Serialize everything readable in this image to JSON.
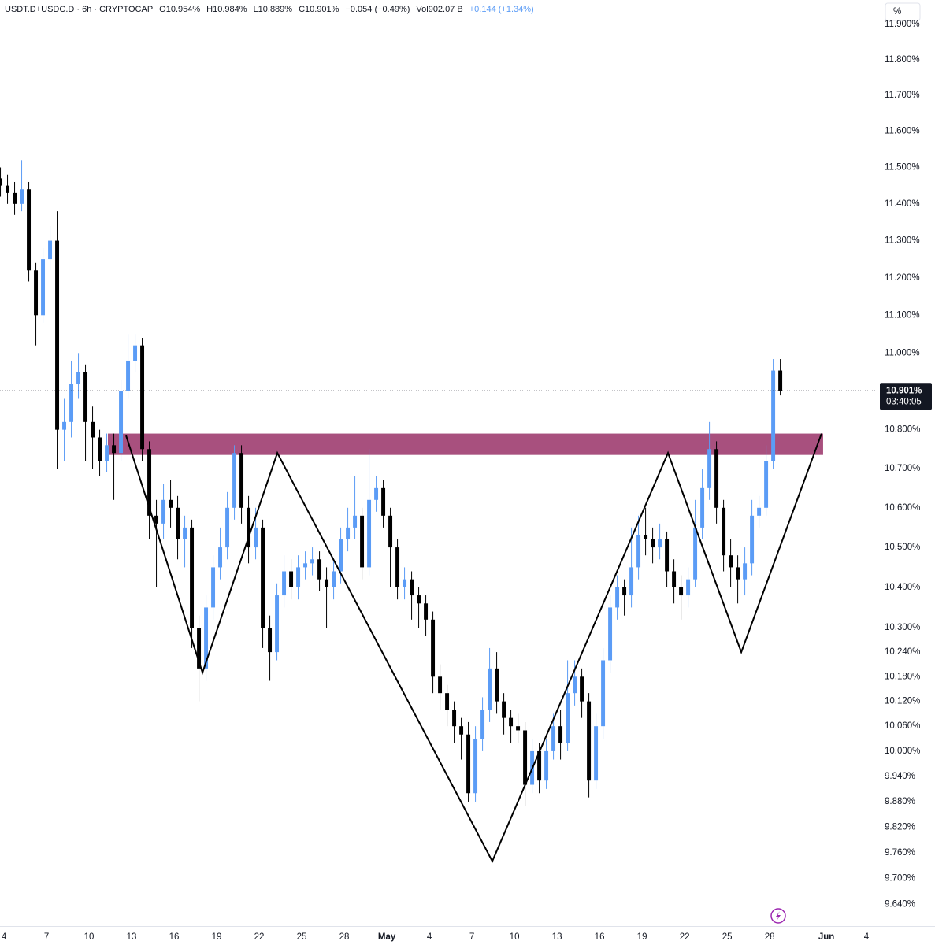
{
  "chart_data": {
    "type": "candlestick",
    "header": {
      "symbol": "USDT.D+USDC.D · 6h · CRYPTOCAP",
      "open": "O10.954%",
      "high": "H10.984%",
      "low": "L10.889%",
      "close": "C10.901%",
      "change": "−0.054 (−0.49%)",
      "volume": "Vol902.07 B",
      "volume_change": "+0.144 (+1.34%)"
    },
    "axis_unit": "%",
    "price_label": "10.901%",
    "countdown": "03:40:05",
    "up_color": "#5b9cf6",
    "down_color": "#000000",
    "log_scale": true,
    "grid": false,
    "xlim": [
      3.72,
      65.55
    ],
    "ylim": [
      9.59,
      11.97
    ],
    "xticks": [
      4,
      7,
      10,
      13,
      16,
      19,
      22,
      25,
      28,
      {
        "value": 31,
        "label": "May"
      },
      {
        "value": 34,
        "label": "4"
      },
      {
        "value": 37,
        "label": "7"
      },
      {
        "value": 40,
        "label": "10"
      },
      {
        "value": 43,
        "label": "13"
      },
      {
        "value": 46,
        "label": "16"
      },
      {
        "value": 49,
        "label": "19"
      },
      {
        "value": 52,
        "label": "22"
      },
      {
        "value": 55,
        "label": "25"
      },
      {
        "value": 58,
        "label": "28"
      },
      {
        "value": 62,
        "label": "Jun"
      },
      {
        "value": 65,
        "label": "4"
      }
    ],
    "yticks": [
      {
        "value": 11.9,
        "label": "11.900%"
      },
      {
        "value": 11.8,
        "label": "11.800%"
      },
      {
        "value": 11.7,
        "label": "11.700%"
      },
      {
        "value": 11.6,
        "label": "11.600%"
      },
      {
        "value": 11.5,
        "label": "11.500%"
      },
      {
        "value": 11.4,
        "label": "11.400%"
      },
      {
        "value": 11.3,
        "label": "11.300%"
      },
      {
        "value": 11.2,
        "label": "11.200%"
      },
      {
        "value": 11.1,
        "label": "11.100%"
      },
      {
        "value": 11.0,
        "label": "11.000%"
      },
      {
        "value": 10.8,
        "label": "10.800%"
      },
      {
        "value": 10.7,
        "label": "10.700%"
      },
      {
        "value": 10.6,
        "label": "10.600%"
      },
      {
        "value": 10.5,
        "label": "10.500%"
      },
      {
        "value": 10.4,
        "label": "10.400%"
      },
      {
        "value": 10.3,
        "label": "10.300%"
      },
      {
        "value": 10.24,
        "label": "10.240%"
      },
      {
        "value": 10.18,
        "label": "10.180%"
      },
      {
        "value": 10.12,
        "label": "10.120%"
      },
      {
        "value": 10.06,
        "label": "10.060%"
      },
      {
        "value": 10.0,
        "label": "10.000%"
      },
      {
        "value": 9.94,
        "label": "9.940%"
      },
      {
        "value": 9.88,
        "label": "9.880%"
      },
      {
        "value": 9.82,
        "label": "9.820%"
      },
      {
        "value": 9.76,
        "label": "9.760%"
      },
      {
        "value": 9.7,
        "label": "9.700%"
      },
      {
        "value": 9.64,
        "label": "9.640%"
      }
    ],
    "x": [
      3.75,
      4.25,
      4.75,
      5.25,
      5.75,
      6.25,
      6.75,
      7.25,
      7.75,
      8.25,
      8.75,
      9.25,
      9.75,
      10.25,
      10.75,
      11.25,
      11.75,
      12.25,
      12.75,
      13.25,
      13.75,
      14.25,
      14.75,
      15.25,
      15.75,
      16.25,
      16.75,
      17.25,
      17.75,
      18.25,
      18.75,
      19.25,
      19.75,
      20.25,
      20.75,
      21.25,
      21.75,
      22.25,
      22.75,
      23.25,
      23.75,
      24.25,
      24.75,
      25.25,
      25.75,
      26.25,
      26.75,
      27.25,
      27.75,
      28.25,
      28.75,
      29.25,
      29.75,
      30.25,
      30.75,
      31.25,
      31.75,
      32.25,
      32.75,
      33.25,
      33.75,
      34.25,
      34.75,
      35.25,
      35.75,
      36.25,
      36.75,
      37.25,
      37.75,
      38.25,
      38.75,
      39.25,
      39.75,
      40.25,
      40.75,
      41.25,
      41.75,
      42.25,
      42.75,
      43.25,
      43.75,
      44.25,
      44.75,
      45.25,
      45.75,
      46.25,
      46.75,
      47.25,
      47.75,
      48.25,
      48.75,
      49.25,
      49.75,
      50.25,
      50.75,
      51.25,
      51.75,
      52.25,
      52.75,
      53.25,
      53.75,
      54.25,
      54.75,
      55.25,
      55.75,
      56.25,
      56.75,
      57.25,
      57.75,
      58.25,
      58.75
    ],
    "open": [
      11.47,
      11.45,
      11.43,
      11.4,
      11.44,
      11.22,
      11.1,
      11.25,
      11.3,
      10.8,
      10.82,
      10.92,
      10.95,
      10.82,
      10.78,
      10.72,
      10.76,
      10.74,
      10.9,
      10.98,
      11.02,
      10.75,
      10.58,
      10.56,
      10.62,
      10.6,
      10.52,
      10.55,
      10.3,
      10.2,
      10.35,
      10.45,
      10.5,
      10.6,
      10.74,
      10.6,
      10.5,
      10.55,
      10.3,
      10.24,
      10.38,
      10.44,
      10.4,
      10.45,
      10.46,
      10.47,
      10.42,
      10.4,
      10.44,
      10.52,
      10.55,
      10.58,
      10.45,
      10.62,
      10.65,
      10.58,
      10.5,
      10.4,
      10.42,
      10.38,
      10.36,
      10.32,
      10.18,
      10.14,
      10.1,
      10.06,
      10.04,
      9.9,
      10.03,
      10.1,
      10.2,
      10.12,
      10.08,
      10.06,
      10.05,
      9.92,
      10.0,
      9.93,
      10.0,
      10.06,
      10.02,
      10.14,
      10.18,
      10.12,
      9.93,
      10.06,
      10.22,
      10.35,
      10.4,
      10.38,
      10.45,
      10.53,
      10.52,
      10.5,
      10.52,
      10.44,
      10.4,
      10.38,
      10.42,
      10.55,
      10.65,
      10.75,
      10.6,
      10.48,
      10.45,
      10.42,
      10.46,
      10.58,
      10.6,
      10.72,
      10.954
    ],
    "high": [
      11.5,
      11.48,
      11.46,
      11.52,
      11.46,
      11.24,
      11.28,
      11.34,
      11.38,
      10.88,
      10.98,
      11.0,
      10.97,
      10.86,
      10.8,
      10.79,
      10.79,
      10.93,
      11.05,
      11.05,
      11.04,
      10.77,
      10.62,
      10.66,
      10.67,
      10.63,
      10.58,
      10.57,
      10.33,
      10.38,
      10.48,
      10.55,
      10.64,
      10.76,
      10.76,
      10.63,
      10.6,
      10.57,
      10.33,
      10.41,
      10.48,
      10.47,
      10.48,
      10.49,
      10.5,
      10.49,
      10.45,
      10.47,
      10.55,
      10.6,
      10.68,
      10.6,
      10.75,
      10.68,
      10.67,
      10.6,
      10.52,
      10.45,
      10.44,
      10.4,
      10.38,
      10.34,
      10.21,
      10.16,
      10.12,
      10.08,
      10.07,
      10.06,
      10.13,
      10.25,
      10.24,
      10.14,
      10.1,
      10.09,
      10.07,
      10.03,
      10.02,
      10.03,
      10.09,
      10.1,
      10.22,
      10.22,
      10.2,
      10.14,
      10.09,
      10.25,
      10.38,
      10.43,
      10.42,
      10.55,
      10.58,
      10.6,
      10.55,
      10.56,
      10.54,
      10.47,
      10.43,
      10.45,
      10.62,
      10.7,
      10.82,
      10.77,
      10.62,
      10.52,
      10.48,
      10.5,
      10.62,
      10.63,
      10.76,
      10.984,
      10.984
    ],
    "low": [
      11.42,
      11.4,
      11.37,
      11.38,
      11.19,
      11.02,
      11.08,
      11.22,
      10.7,
      10.72,
      10.78,
      10.88,
      10.72,
      10.7,
      10.68,
      10.69,
      10.62,
      10.72,
      10.88,
      10.95,
      10.72,
      10.52,
      10.4,
      10.52,
      10.55,
      10.47,
      10.45,
      10.25,
      10.12,
      10.17,
      10.32,
      10.42,
      10.47,
      10.57,
      10.56,
      10.46,
      10.47,
      10.25,
      10.17,
      10.22,
      10.35,
      10.37,
      10.37,
      10.42,
      10.43,
      10.39,
      10.3,
      10.37,
      10.41,
      10.49,
      10.52,
      10.42,
      10.43,
      10.59,
      10.55,
      10.4,
      10.37,
      10.37,
      10.32,
      10.3,
      10.28,
      10.14,
      10.1,
      10.06,
      10.02,
      9.98,
      9.88,
      9.88,
      10.0,
      10.07,
      10.09,
      10.04,
      10.02,
      10.02,
      9.87,
      9.9,
      9.9,
      9.91,
      9.98,
      9.98,
      10.0,
      10.11,
      10.08,
      9.89,
      9.91,
      10.03,
      10.19,
      10.32,
      10.33,
      10.35,
      10.42,
      10.48,
      10.46,
      10.47,
      10.4,
      10.36,
      10.32,
      10.35,
      10.4,
      10.52,
      10.62,
      10.56,
      10.44,
      10.4,
      10.36,
      10.38,
      10.43,
      10.55,
      10.58,
      10.7,
      10.889
    ],
    "close": [
      11.45,
      11.43,
      11.4,
      11.44,
      11.22,
      11.1,
      11.25,
      11.3,
      10.8,
      10.82,
      10.92,
      10.95,
      10.82,
      10.78,
      10.72,
      10.76,
      10.74,
      10.9,
      10.98,
      11.02,
      10.75,
      10.58,
      10.56,
      10.62,
      10.6,
      10.52,
      10.55,
      10.3,
      10.2,
      10.35,
      10.45,
      10.5,
      10.6,
      10.74,
      10.6,
      10.5,
      10.55,
      10.3,
      10.24,
      10.38,
      10.44,
      10.4,
      10.45,
      10.46,
      10.47,
      10.42,
      10.4,
      10.44,
      10.52,
      10.55,
      10.58,
      10.45,
      10.62,
      10.65,
      10.58,
      10.5,
      10.4,
      10.42,
      10.38,
      10.36,
      10.32,
      10.18,
      10.14,
      10.1,
      10.06,
      10.04,
      9.9,
      10.03,
      10.1,
      10.2,
      10.12,
      10.08,
      10.06,
      10.05,
      9.92,
      10.0,
      9.93,
      10.0,
      10.06,
      10.02,
      10.14,
      10.18,
      10.12,
      9.93,
      10.06,
      10.22,
      10.35,
      10.4,
      10.38,
      10.45,
      10.53,
      10.52,
      10.5,
      10.52,
      10.44,
      10.4,
      10.38,
      10.42,
      10.55,
      10.65,
      10.75,
      10.6,
      10.48,
      10.45,
      10.42,
      10.46,
      10.58,
      10.6,
      10.72,
      10.954,
      10.901
    ],
    "zone": {
      "x": [
        11.33,
        61.77
      ],
      "y": [
        10.735,
        10.79
      ],
      "color": "#a8507e"
    },
    "pattern": {
      "x": [
        12.61,
        18.0,
        23.28,
        38.44,
        50.83,
        56.0,
        61.66
      ],
      "y": [
        10.785,
        10.19,
        10.74,
        9.74,
        10.74,
        10.24,
        10.79
      ],
      "color": "#000000"
    }
  }
}
